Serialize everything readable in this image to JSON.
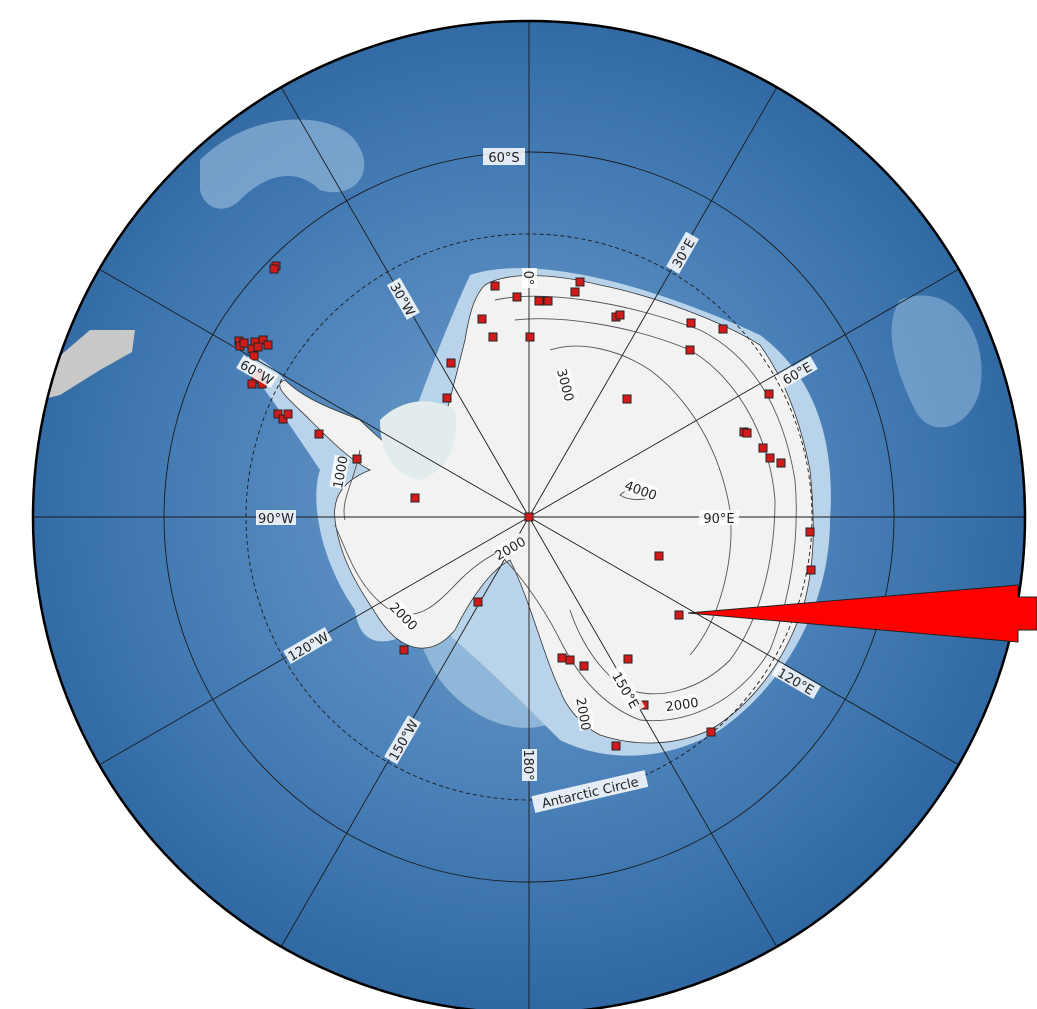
{
  "map": {
    "projection": "south-polar-stereographic",
    "colors": {
      "ocean_deep": "#2f68a2",
      "ocean_mid": "#5b8fc2",
      "ocean_shallow": "#a9c9e3",
      "ice": "#f2f2f2",
      "station_fill": "#d11a1a",
      "arrow": "#ff0000",
      "graticule": "#1a1a1a"
    },
    "latitude_labels": [
      {
        "text": "60°S",
        "lat": -60
      }
    ],
    "special_circle": {
      "text": "Antarctic Circle",
      "style": "dashed"
    },
    "meridian_labels": [
      {
        "text": "0°",
        "lon": 0
      },
      {
        "text": "30°E",
        "lon": 30
      },
      {
        "text": "60°E",
        "lon": 60
      },
      {
        "text": "90°E",
        "lon": 90
      },
      {
        "text": "120°E",
        "lon": 120
      },
      {
        "text": "150°E",
        "lon": 150
      },
      {
        "text": "180°",
        "lon": 180
      },
      {
        "text": "150°W",
        "lon": -150
      },
      {
        "text": "120°W",
        "lon": -120
      },
      {
        "text": "90°W",
        "lon": -90
      },
      {
        "text": "60°W",
        "lon": -60
      },
      {
        "text": "30°W",
        "lon": -30
      }
    ],
    "contour_labels": [
      {
        "text": "1000"
      },
      {
        "text": "2000"
      },
      {
        "text": "2000"
      },
      {
        "text": "2000"
      },
      {
        "text": "2000"
      },
      {
        "text": "3000"
      },
      {
        "text": "4000"
      }
    ],
    "station_count": 74,
    "highlight_marker": "red-arrow-pointer"
  }
}
